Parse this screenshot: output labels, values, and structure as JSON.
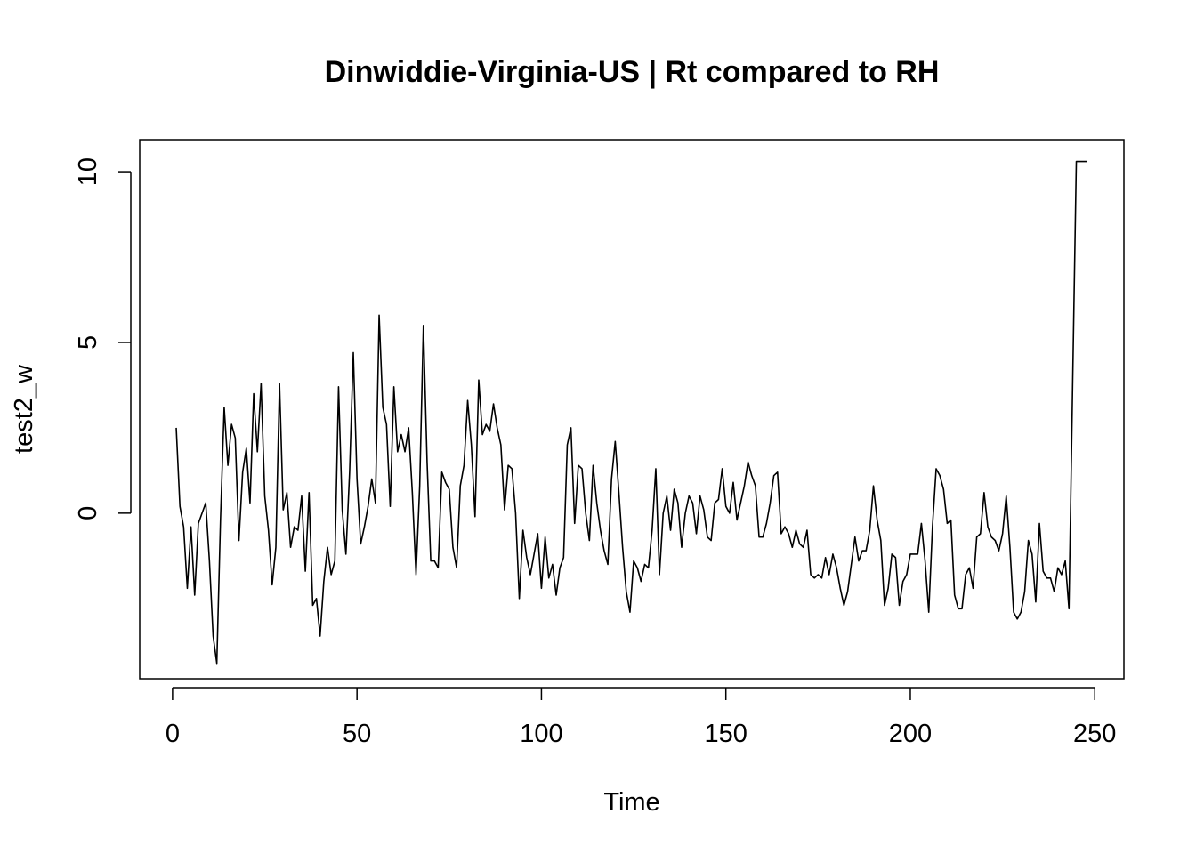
{
  "chart_data": {
    "type": "line",
    "title": "Dinwiddie-Virginia-US | Rt compared to RH",
    "xlabel": "Time",
    "ylabel": "test2_w",
    "xlim": [
      -8.9,
      257.9
    ],
    "ylim": [
      -4.85,
      10.94
    ],
    "x_ticks": [
      0,
      50,
      100,
      150,
      200,
      250
    ],
    "y_ticks": [
      0,
      5,
      10
    ],
    "grid": false,
    "line_color": "#000000",
    "series": [
      {
        "x_start": 1,
        "x_step": 1,
        "values": [
          2.5,
          0.2,
          -0.4,
          -2.2,
          -0.4,
          -2.4,
          -0.3,
          0.0,
          0.3,
          -1.4,
          -3.6,
          -4.4,
          -0.2,
          3.1,
          1.4,
          2.6,
          2.2,
          -0.8,
          1.2,
          1.9,
          0.3,
          3.5,
          1.8,
          3.8,
          0.5,
          -0.5,
          -2.1,
          -1.0,
          3.8,
          0.1,
          0.6,
          -1.0,
          -0.4,
          -0.5,
          0.5,
          -1.7,
          0.6,
          -2.7,
          -2.5,
          -3.6,
          -2.0,
          -1.0,
          -1.8,
          -1.4,
          3.7,
          0.1,
          -1.2,
          1.2,
          4.7,
          1.0,
          -0.9,
          -0.4,
          0.2,
          1.0,
          0.3,
          5.8,
          3.1,
          2.6,
          0.2,
          3.7,
          1.8,
          2.3,
          1.8,
          2.5,
          0.6,
          -1.8,
          0.8,
          5.5,
          1.5,
          -1.4,
          -1.4,
          -1.6,
          1.2,
          0.9,
          0.7,
          -1.0,
          -1.6,
          0.8,
          1.4,
          3.3,
          2.0,
          -0.1,
          3.9,
          2.3,
          2.6,
          2.4,
          3.2,
          2.5,
          2.0,
          0.1,
          1.4,
          1.3,
          0.0,
          -2.5,
          -0.5,
          -1.3,
          -1.8,
          -1.2,
          -0.6,
          -2.2,
          -0.7,
          -1.9,
          -1.5,
          -2.4,
          -1.6,
          -1.3,
          2.0,
          2.5,
          -0.3,
          1.4,
          1.3,
          0.0,
          -0.8,
          1.4,
          0.3,
          -0.5,
          -1.1,
          -1.5,
          1.0,
          2.1,
          0.6,
          -1.0,
          -2.3,
          -2.9,
          -1.4,
          -1.6,
          -2.0,
          -1.5,
          -1.6,
          -0.5,
          1.3,
          -1.8,
          0.0,
          0.5,
          -0.5,
          0.7,
          0.3,
          -1.0,
          0.0,
          0.5,
          0.3,
          -0.6,
          0.5,
          0.1,
          -0.7,
          -0.8,
          0.3,
          0.4,
          1.3,
          0.2,
          0.0,
          0.9,
          -0.2,
          0.3,
          0.8,
          1.5,
          1.1,
          0.8,
          -0.7,
          -0.7,
          -0.3,
          0.3,
          1.1,
          1.2,
          -0.6,
          -0.4,
          -0.6,
          -1.0,
          -0.5,
          -0.9,
          -1.0,
          -0.5,
          -1.8,
          -1.9,
          -1.8,
          -1.9,
          -1.3,
          -1.8,
          -1.2,
          -1.6,
          -2.2,
          -2.7,
          -2.3,
          -1.5,
          -0.7,
          -1.4,
          -1.1,
          -1.1,
          -0.5,
          0.8,
          -0.2,
          -0.8,
          -2.7,
          -2.2,
          -1.2,
          -1.3,
          -2.7,
          -2.0,
          -1.8,
          -1.2,
          -1.2,
          -1.2,
          -0.3,
          -1.4,
          -2.9,
          -0.4,
          1.3,
          1.1,
          0.7,
          -0.3,
          -0.2,
          -2.4,
          -2.8,
          -2.8,
          -1.8,
          -1.6,
          -2.2,
          -0.7,
          -0.6,
          0.6,
          -0.4,
          -0.7,
          -0.8,
          -1.1,
          -0.6,
          0.5,
          -1.0,
          -2.9,
          -3.1,
          -2.9,
          -2.3,
          -0.8,
          -1.2,
          -2.6,
          -0.3,
          -1.7,
          -1.9,
          -1.9,
          -2.3,
          -1.6,
          -1.8,
          -1.4,
          -2.8,
          3.8,
          10.3,
          10.3,
          10.3,
          10.3
        ]
      }
    ]
  }
}
